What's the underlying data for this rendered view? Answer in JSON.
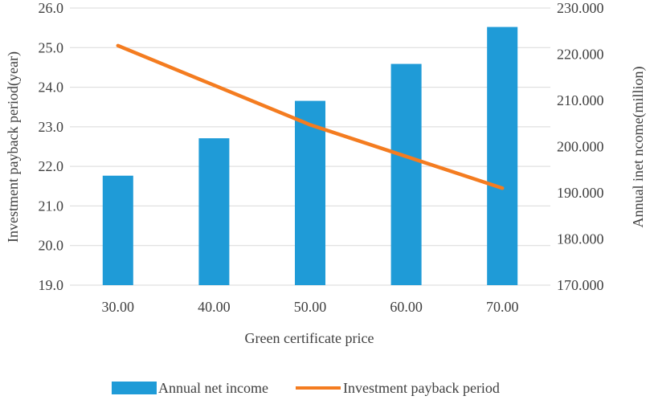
{
  "chart_data": {
    "type": "bar+line",
    "categories": [
      "30.00",
      "40.00",
      "50.00",
      "60.00",
      "70.00"
    ],
    "xlabel": "Green certificate price",
    "y_left": {
      "label": "Investment payback period(year)",
      "min": 19.0,
      "max": 26.0,
      "step": 1.0,
      "ticks": [
        "19.0",
        "20.0",
        "21.0",
        "22.0",
        "23.0",
        "24.0",
        "25.0",
        "26.0"
      ]
    },
    "y_right": {
      "label": "Annual inet ncome(million)",
      "min": 170,
      "max": 230,
      "step": 10,
      "ticks": [
        "170.000",
        "180.000",
        "190.000",
        "200.000",
        "210.000",
        "220.000",
        "230.000"
      ]
    },
    "series": [
      {
        "name": "Annual net income",
        "type": "bar",
        "axis": "right",
        "color": "#1f9bd7",
        "values": [
          193.7,
          201.8,
          209.9,
          217.9,
          225.9
        ]
      },
      {
        "name": "Investment payback period",
        "type": "line",
        "axis": "left",
        "color": "#f47c20",
        "values": [
          25.05,
          24.05,
          23.05,
          22.25,
          21.45
        ]
      }
    ],
    "grid": true,
    "legend": "bottom"
  }
}
